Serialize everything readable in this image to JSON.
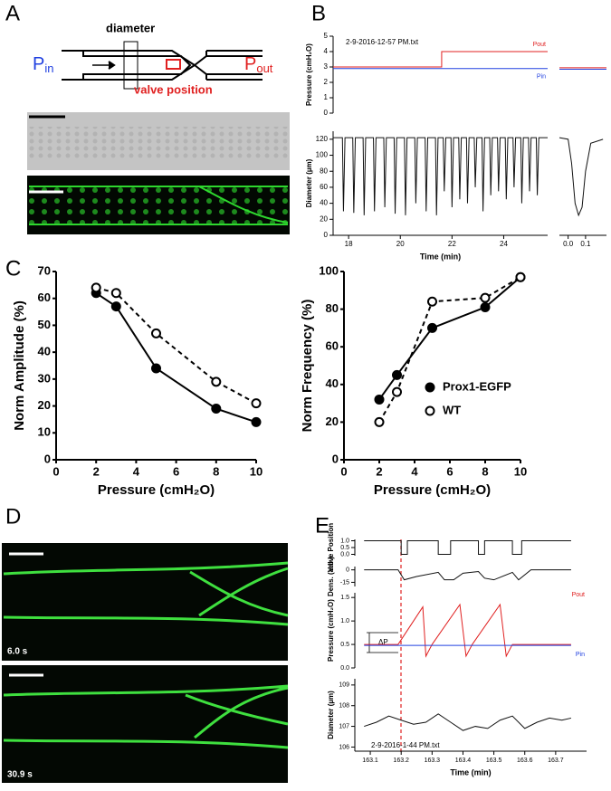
{
  "panel_labels": [
    "A",
    "B",
    "C",
    "D",
    "E"
  ],
  "diagram": {
    "diameter": "diameter",
    "p_in": {
      "main": "P",
      "sub": "in"
    },
    "p_out": {
      "main": "P",
      "sub": "out"
    },
    "valve": "valve position"
  },
  "images": {
    "d_top_time": "6.0 s",
    "d_bottom_time": "30.9 s"
  },
  "chart_data": [
    {
      "type": "line",
      "ylabel": "Pressure (cmH₂O)",
      "annotation": "2-9-2016-12-57 PM.txt",
      "x": [
        17.4,
        21.6,
        21.6,
        25.7
      ],
      "xlim": [
        17.4,
        25.7
      ],
      "ylim": [
        0,
        5
      ],
      "yticks": [
        0,
        1,
        2,
        3,
        4,
        5
      ],
      "series": [
        {
          "name": "Pout",
          "color": "#e02020",
          "values": [
            3,
            3,
            4,
            4
          ]
        },
        {
          "name": "Pin",
          "color": "#2040e0",
          "values": [
            2.9,
            2.9,
            2.9,
            2.9
          ]
        }
      ]
    },
    {
      "type": "line",
      "x": [
        -0.05,
        0.22
      ],
      "xlim": [
        -0.05,
        0.22
      ],
      "ylim": [
        0,
        5
      ],
      "series": [
        {
          "color": "#e02020",
          "values": [
            2.95,
            2.95
          ]
        },
        {
          "color": "#2040e0",
          "values": [
            2.85,
            2.85
          ]
        }
      ]
    },
    {
      "type": "line",
      "ylabel": "Diameter (µm)",
      "xlabel": "Time  (min)",
      "xlim": [
        17.4,
        25.7
      ],
      "ylim": [
        0,
        130
      ],
      "yticks": [
        0,
        20,
        40,
        60,
        80,
        100,
        120
      ],
      "xticks": [
        18,
        20,
        22,
        24
      ],
      "x": [
        17.4,
        17.76,
        17.8,
        17.86,
        18.16,
        18.2,
        18.26,
        18.56,
        18.6,
        18.66,
        18.96,
        19.0,
        19.06,
        19.36,
        19.4,
        19.46,
        19.76,
        19.8,
        19.86,
        20.16,
        20.2,
        20.26,
        20.56,
        20.6,
        20.66,
        20.96,
        21.0,
        21.06,
        21.36,
        21.4,
        21.46,
        21.66,
        21.7,
        21.76,
        21.96,
        22.0,
        22.06,
        22.26,
        22.3,
        22.36,
        22.56,
        22.6,
        22.66,
        22.86,
        22.9,
        22.96,
        23.16,
        23.2,
        23.26,
        23.46,
        23.5,
        23.56,
        23.76,
        23.8,
        23.86,
        24.06,
        24.1,
        24.16,
        24.36,
        24.4,
        24.46,
        24.66,
        24.7,
        24.76,
        24.96,
        25.0,
        25.06,
        25.26,
        25.3,
        25.36,
        25.7
      ],
      "series": [
        {
          "color": "#111111",
          "values": [
            122,
            122,
            30,
            122,
            122,
            28,
            122,
            122,
            25,
            122,
            122,
            30,
            122,
            122,
            35,
            122,
            122,
            27,
            122,
            122,
            25,
            122,
            122,
            40,
            122,
            122,
            30,
            122,
            122,
            25,
            122,
            122,
            55,
            122,
            122,
            35,
            122,
            122,
            45,
            122,
            122,
            40,
            122,
            122,
            60,
            122,
            122,
            30,
            122,
            122,
            50,
            122,
            122,
            55,
            122,
            122,
            45,
            122,
            122,
            60,
            122,
            122,
            40,
            122,
            122,
            55,
            122,
            122,
            50,
            122,
            122
          ]
        }
      ]
    },
    {
      "type": "line",
      "x": [
        -0.05,
        0,
        0.02,
        0.04,
        0.06,
        0.08,
        0.1,
        0.13,
        0.2
      ],
      "xlim": [
        -0.05,
        0.22
      ],
      "ylim": [
        0,
        130
      ],
      "xticks": [
        {
          "value": 0,
          "label": "0.0"
        },
        0.1
      ],
      "series": [
        {
          "color": "#111111",
          "values": [
            122,
            120,
            90,
            40,
            25,
            35,
            80,
            115,
            120
          ]
        }
      ]
    },
    {
      "type": "line",
      "ylabel": "Norm Amplitude (%)",
      "xlabel": "Pressure (cmH₂O)",
      "x": [
        2,
        3,
        5,
        8,
        10
      ],
      "xlim": [
        0,
        10
      ],
      "ylim": [
        0,
        70
      ],
      "xticks": [
        0,
        2,
        4,
        6,
        8,
        10
      ],
      "yticks": [
        0,
        10,
        20,
        30,
        40,
        50,
        60,
        70
      ],
      "series": [
        {
          "color": "#000000",
          "marker": "filled",
          "linestyle": "solid",
          "values": [
            62,
            57,
            34,
            19,
            14
          ]
        },
        {
          "color": "#000000",
          "marker": "open",
          "linestyle": "dashed",
          "values": [
            64,
            62,
            47,
            29,
            21
          ]
        }
      ]
    },
    {
      "type": "line",
      "ylabel": "Norm Frequency (%)",
      "xlabel": "Pressure (cmH₂O)",
      "x": [
        2,
        3,
        5,
        8,
        10
      ],
      "xlim": [
        0,
        10
      ],
      "ylim": [
        0,
        100
      ],
      "xticks": [
        0,
        2,
        4,
        6,
        8,
        10
      ],
      "yticks": [
        0,
        20,
        40,
        60,
        80,
        100
      ],
      "legend": "lower right",
      "series": [
        {
          "name": "Prox1-EGFP",
          "color": "#000000",
          "marker": "filled",
          "linestyle": "solid",
          "values": [
            32,
            45,
            70,
            81,
            97
          ]
        },
        {
          "name": "WT",
          "color": "#000000",
          "marker": "open",
          "linestyle": "dashed",
          "values": [
            20,
            36,
            84,
            86,
            97
          ]
        }
      ]
    },
    {
      "type": "line",
      "ylabel": "Valve Position",
      "x": [
        163.08,
        163.2,
        163.2,
        163.22,
        163.22,
        163.32,
        163.32,
        163.36,
        163.36,
        163.45,
        163.45,
        163.47,
        163.47,
        163.56,
        163.56,
        163.59,
        163.59,
        163.75
      ],
      "xlim": [
        163.05,
        163.8
      ],
      "ylim": [
        -0.1,
        1.1
      ],
      "yticks": [
        {
          "value": 0,
          "label": "0.0"
        },
        0.5,
        {
          "value": 1,
          "label": "1.0"
        }
      ],
      "series": [
        {
          "color": "#111111",
          "values": [
            1,
            1,
            0,
            0,
            1,
            1,
            0,
            0,
            1,
            1,
            0,
            0,
            1,
            1,
            0,
            0,
            1,
            1
          ]
        }
      ]
    },
    {
      "type": "line",
      "ylabel": "Dens. (arb.)",
      "x": [
        163.08,
        163.19,
        163.21,
        163.25,
        163.32,
        163.34,
        163.37,
        163.4,
        163.45,
        163.47,
        163.5,
        163.56,
        163.58,
        163.62,
        163.75
      ],
      "xlim": [
        163.05,
        163.8
      ],
      "ylim": [
        -20,
        4
      ],
      "yticks": [
        0,
        -15
      ],
      "series": [
        {
          "color": "#111111",
          "values": [
            0,
            0,
            -12,
            -8,
            -3,
            -12,
            -12,
            -4,
            -2,
            -10,
            -12,
            -3,
            -12,
            0,
            0
          ]
        }
      ]
    },
    {
      "type": "line",
      "ylabel": "Pressure (cmH₂O)",
      "annotation": "ΔP",
      "x": [
        163.08,
        163.19,
        163.27,
        163.28,
        163.3,
        163.39,
        163.41,
        163.43,
        163.52,
        163.54,
        163.56,
        163.65,
        163.75
      ],
      "xlim": [
        163.05,
        163.8
      ],
      "ylim": [
        0,
        1.6
      ],
      "yticks": [
        {
          "value": 0,
          "label": "0.0"
        },
        0.5,
        {
          "value": 1,
          "label": "1.0"
        },
        1.5
      ],
      "series": [
        {
          "name": "Pout",
          "color": "#e02020",
          "values": [
            0.5,
            0.5,
            1.3,
            0.25,
            0.5,
            1.35,
            0.25,
            0.5,
            1.35,
            0.25,
            0.5,
            0.5,
            0.5
          ]
        },
        {
          "name": "Pin",
          "color": "#2040e0",
          "values": [
            0.48,
            0.48,
            0.48,
            0.48,
            0.48,
            0.48,
            0.48,
            0.48,
            0.48,
            0.48,
            0.48,
            0.48,
            0.48
          ]
        }
      ]
    },
    {
      "type": "line",
      "ylabel": "Diameter (µm)",
      "xlabel": "Time (min)",
      "annotation": "2-9-2016-1-44 PM.txt",
      "x": [
        163.08,
        163.12,
        163.16,
        163.2,
        163.24,
        163.28,
        163.32,
        163.36,
        163.4,
        163.44,
        163.48,
        163.52,
        163.56,
        163.6,
        163.64,
        163.68,
        163.72,
        163.75
      ],
      "xlim": [
        163.05,
        163.8
      ],
      "ylim": [
        105.8,
        109.3
      ],
      "yticks": [
        106,
        107,
        108,
        109
      ],
      "xticks": [
        163.1,
        163.2,
        163.3,
        163.4,
        163.5,
        163.6,
        163.7
      ],
      "series": [
        {
          "color": "#111111",
          "values": [
            107.0,
            107.2,
            107.5,
            107.3,
            107.1,
            107.2,
            107.6,
            107.2,
            106.8,
            107.0,
            106.9,
            107.3,
            107.5,
            106.9,
            107.2,
            107.4,
            107.3,
            107.4
          ]
        }
      ]
    }
  ]
}
